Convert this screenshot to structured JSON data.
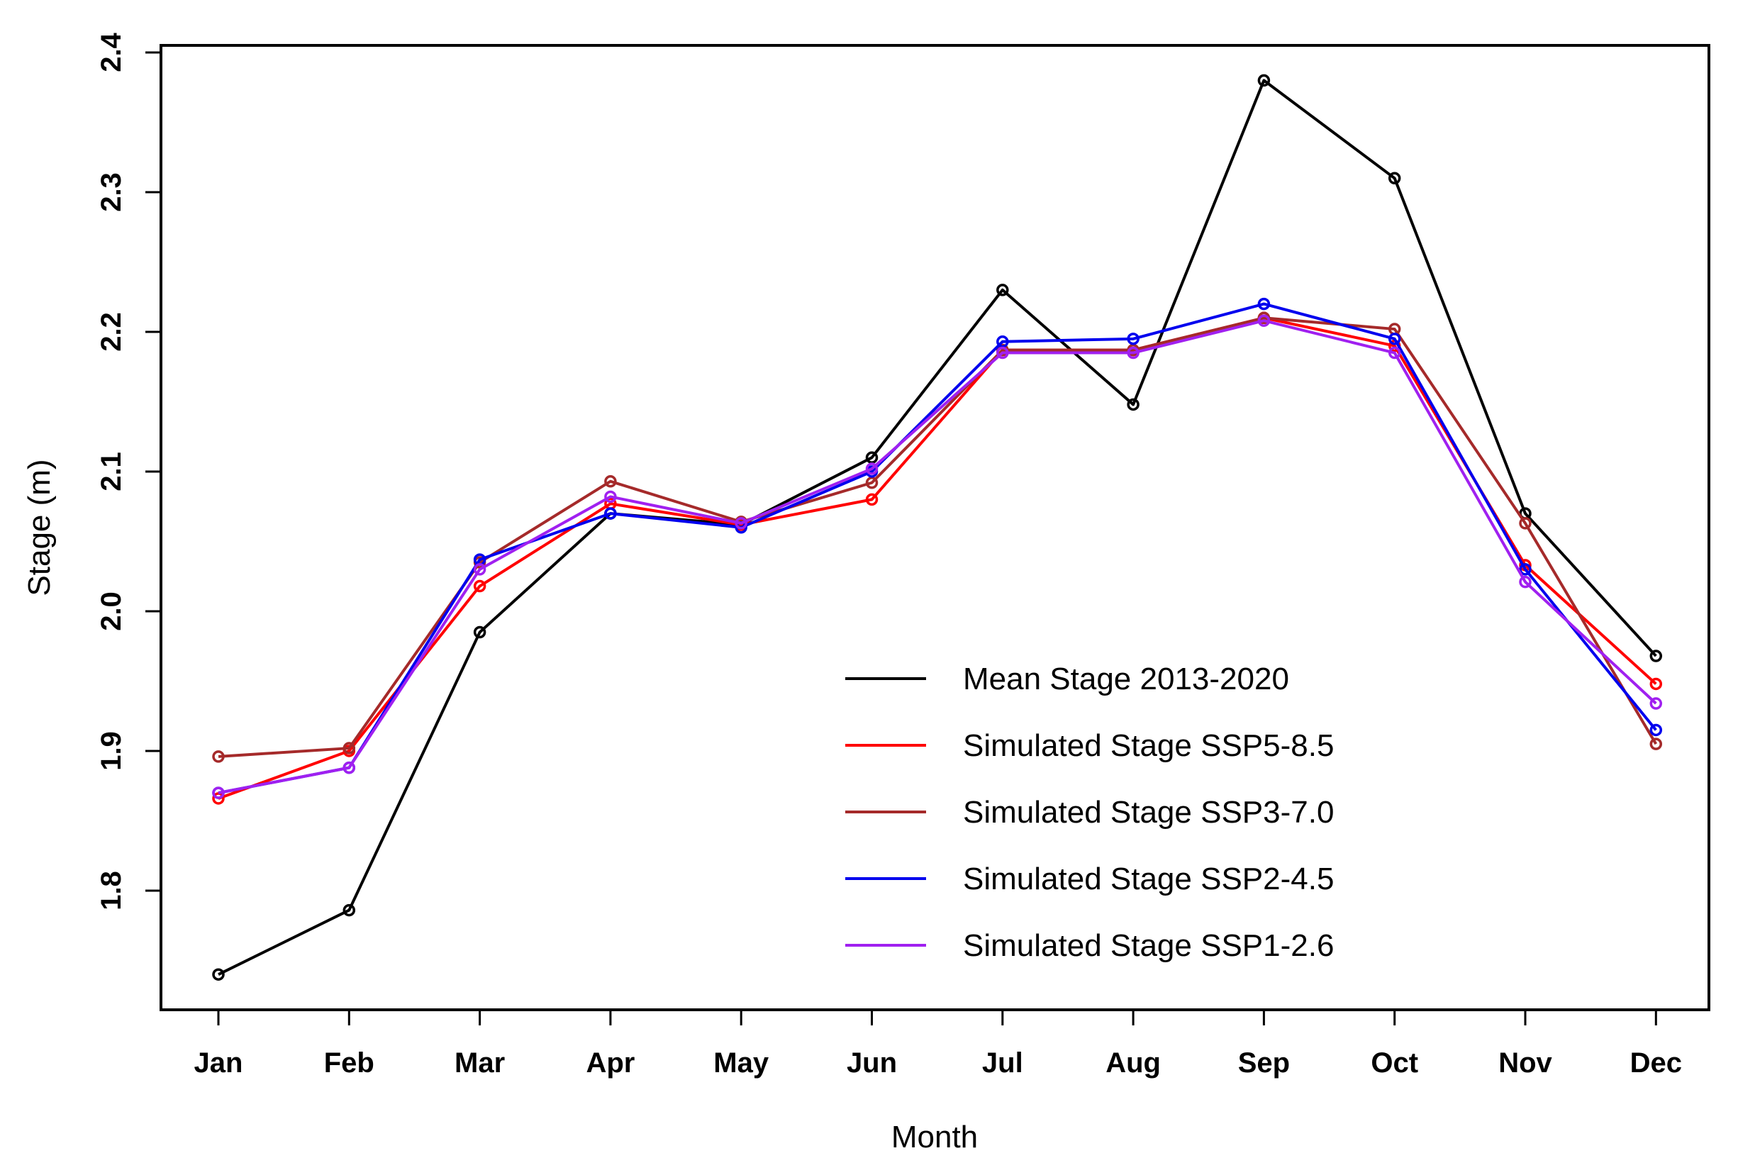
{
  "chart_data": {
    "type": "line",
    "title": "",
    "xlabel": "Month",
    "ylabel": "Stage (m)",
    "categories": [
      "Jan",
      "Feb",
      "Mar",
      "Apr",
      "May",
      "Jun",
      "Jul",
      "Aug",
      "Sep",
      "Oct",
      "Nov",
      "Dec"
    ],
    "ylim": [
      1.72,
      2.4
    ],
    "yticks": [
      "1.8",
      "1.9",
      "2.0",
      "2.1",
      "2.2",
      "2.3",
      "2.4"
    ],
    "legend_position": "bottom-right",
    "series": [
      {
        "name": "Mean Stage 2013-2020",
        "color": "#000000",
        "values": [
          1.74,
          1.786,
          1.985,
          2.07,
          2.062,
          2.11,
          2.23,
          2.148,
          2.38,
          2.31,
          2.07,
          1.968
        ]
      },
      {
        "name": "Simulated Stage SSP5-8.5",
        "color": "#ff0000",
        "values": [
          1.866,
          1.9,
          2.018,
          2.077,
          2.062,
          2.08,
          2.187,
          2.187,
          2.21,
          2.19,
          2.033,
          1.948
        ]
      },
      {
        "name": "Simulated Stage SSP3-7.0",
        "color": "#a52a2a",
        "values": [
          1.896,
          1.902,
          2.035,
          2.093,
          2.064,
          2.092,
          2.187,
          2.187,
          2.21,
          2.202,
          2.063,
          1.905
        ]
      },
      {
        "name": "Simulated Stage SSP2-4.5",
        "color": "#0000ee",
        "values": [
          1.87,
          1.888,
          2.037,
          2.07,
          2.06,
          2.1,
          2.193,
          2.195,
          2.22,
          2.195,
          2.03,
          1.915
        ]
      },
      {
        "name": "Simulated Stage SSP1-2.6",
        "color": "#a020f0",
        "values": [
          1.87,
          1.888,
          2.03,
          2.082,
          2.063,
          2.102,
          2.185,
          2.185,
          2.208,
          2.185,
          2.021,
          1.934
        ]
      }
    ]
  }
}
